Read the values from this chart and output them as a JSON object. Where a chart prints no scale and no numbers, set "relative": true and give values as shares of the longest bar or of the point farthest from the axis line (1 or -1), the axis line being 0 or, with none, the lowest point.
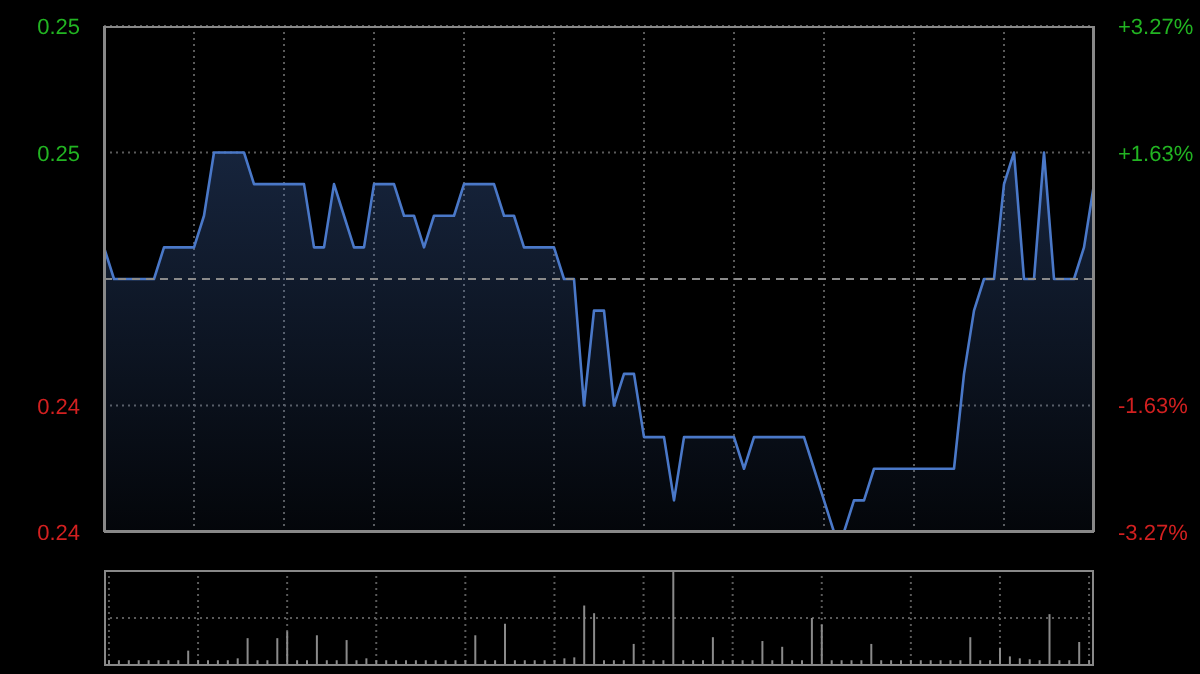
{
  "chart_data": [
    {
      "type": "area",
      "categories": [
        null,
        null,
        null,
        null,
        null,
        null,
        null,
        null,
        null,
        null,
        null,
        null,
        null,
        null,
        null,
        null,
        null,
        null,
        null,
        null,
        null,
        null,
        null,
        null,
        null,
        null,
        null,
        null,
        null,
        null,
        null,
        null,
        null,
        null,
        null,
        null,
        null,
        null,
        null,
        null,
        null,
        null,
        null,
        null,
        null,
        null,
        null,
        null,
        null,
        null,
        null,
        null,
        null,
        null,
        null,
        null,
        null,
        null,
        null,
        null,
        null,
        null,
        null,
        null,
        null,
        null,
        null,
        null,
        null,
        null,
        null,
        null,
        null,
        null,
        null,
        null,
        null,
        null,
        null,
        null,
        null,
        null,
        null,
        null,
        null,
        null,
        null,
        null,
        null,
        null,
        null,
        null,
        null,
        null,
        null,
        null,
        null,
        null,
        null,
        null
      ],
      "series": [
        {
          "color": "#4a78c8",
          "values": [
            0.246,
            0.245,
            0.245,
            0.245,
            0.245,
            0.245,
            0.246,
            0.246,
            0.246,
            0.246,
            0.247,
            0.249,
            0.249,
            0.249,
            0.249,
            0.248,
            0.248,
            0.248,
            0.248,
            0.248,
            0.248,
            0.246,
            0.246,
            0.248,
            0.247,
            0.246,
            0.246,
            0.248,
            0.248,
            0.248,
            0.247,
            0.247,
            0.246,
            0.247,
            0.247,
            0.247,
            0.248,
            0.248,
            0.248,
            0.248,
            0.247,
            0.247,
            0.246,
            0.246,
            0.246,
            0.246,
            0.245,
            0.245,
            0.241,
            0.244,
            0.244,
            0.241,
            0.242,
            0.242,
            0.24,
            0.24,
            0.24,
            0.238,
            0.24,
            0.24,
            0.24,
            0.24,
            0.24,
            0.24,
            0.239,
            0.24,
            0.24,
            0.24,
            0.24,
            0.24,
            0.24,
            0.239,
            0.238,
            0.237,
            0.237,
            0.238,
            0.238,
            0.239,
            0.239,
            0.239,
            0.239,
            0.239,
            0.239,
            0.239,
            0.239,
            0.239,
            0.242,
            0.244,
            0.245,
            0.245,
            0.248,
            0.249,
            0.245,
            0.245,
            0.249,
            0.245,
            0.245,
            0.245,
            0.246,
            0.248
          ]
        }
      ],
      "ylim": [
        0.237,
        0.253
      ],
      "yticks": [
        {
          "value": 0.253,
          "label": "0.25"
        },
        {
          "value": 0.249,
          "label": "0.25"
        },
        {
          "value": 0.241,
          "label": "0.24"
        },
        {
          "value": 0.237,
          "label": "0.24"
        }
      ],
      "y2lim": [
        -3.27,
        3.27
      ],
      "y2ticks": [
        {
          "value": 3.27,
          "label": "+3.27%"
        },
        {
          "value": 1.63,
          "label": "+1.63%"
        },
        {
          "value": -1.63,
          "label": "-1.63%"
        },
        {
          "value": -3.27,
          "label": "-3.27%"
        }
      ],
      "ref_lines": [
        {
          "axis": "y",
          "value": 0.245,
          "color": "#8a8a8a",
          "line_style": "dashed"
        }
      ],
      "grid": true
    },
    {
      "type": "bar",
      "relative": true,
      "color": "#8a8a8a",
      "grid": true,
      "categories": [
        null,
        null,
        null,
        null,
        null,
        null,
        null,
        null,
        null,
        null,
        null,
        null,
        null,
        null,
        null,
        null,
        null,
        null,
        null,
        null,
        null,
        null,
        null,
        null,
        null,
        null,
        null,
        null,
        null,
        null,
        null,
        null,
        null,
        null,
        null,
        null,
        null,
        null,
        null,
        null,
        null,
        null,
        null,
        null,
        null,
        null,
        null,
        null,
        null,
        null,
        null,
        null,
        null,
        null,
        null,
        null,
        null,
        null,
        null,
        null,
        null,
        null,
        null,
        null,
        null,
        null,
        null,
        null,
        null,
        null,
        null,
        null,
        null,
        null,
        null,
        null,
        null,
        null,
        null,
        null,
        null,
        null,
        null,
        null,
        null,
        null,
        null,
        null,
        null,
        null,
        null,
        null,
        null,
        null,
        null,
        null,
        null,
        null,
        null,
        null
      ],
      "values": [
        0.06,
        0.06,
        0.06,
        0.06,
        0.06,
        0.06,
        0.06,
        0.06,
        0.16,
        0.06,
        0.06,
        0.06,
        0.06,
        0.08,
        0.29,
        0.06,
        0.06,
        0.29,
        0.36,
        0.06,
        0.06,
        0.32,
        0.06,
        0.06,
        0.27,
        0.06,
        0.08,
        0.06,
        0.06,
        0.06,
        0.06,
        0.06,
        0.06,
        0.06,
        0.06,
        0.06,
        0.06,
        0.32,
        0.06,
        0.06,
        0.44,
        0.06,
        0.06,
        0.06,
        0.06,
        0.06,
        0.08,
        0.09,
        0.63,
        0.55,
        0.06,
        0.06,
        0.06,
        0.23,
        0.06,
        0.06,
        0.06,
        1,
        0.06,
        0.06,
        0.06,
        0.3,
        0.06,
        0.06,
        0.06,
        0.06,
        0.26,
        0.06,
        0.2,
        0.06,
        0.06,
        0.5,
        0.43,
        0.06,
        0.06,
        0.06,
        0.06,
        0.23,
        0.06,
        0.06,
        0.06,
        0.06,
        0.06,
        0.06,
        0.06,
        0.06,
        0.06,
        0.3,
        0.06,
        0.06,
        0.19,
        0.1,
        0.08,
        0.07,
        0.06,
        0.54,
        0.06,
        0.06,
        0.25,
        0.06
      ]
    }
  ]
}
